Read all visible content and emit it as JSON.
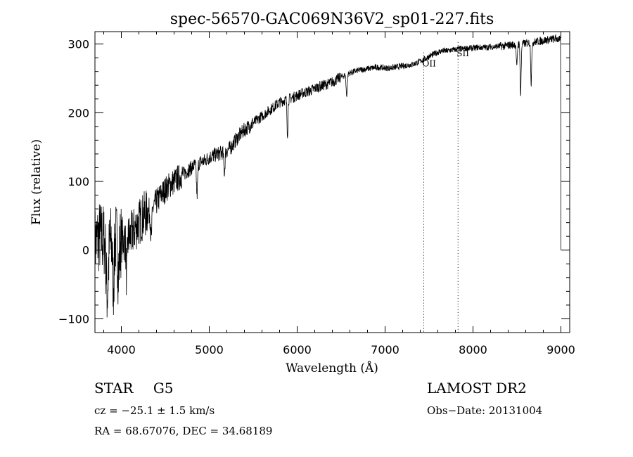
{
  "chart_data": {
    "type": "line",
    "title": "spec-56570-GAC069N36V2_sp01-227.fits",
    "xlabel": "Wavelength (Å)",
    "ylabel": "Flux (relative)",
    "xlim": [
      3700,
      9100
    ],
    "ylim": [
      -120,
      318
    ],
    "xticks": [
      4000,
      5000,
      6000,
      7000,
      8000,
      9000
    ],
    "xtick_labels": [
      "4000",
      "5000",
      "6000",
      "7000",
      "8000",
      "9000"
    ],
    "yticks": [
      -100,
      0,
      100,
      200,
      300
    ],
    "ytick_labels": [
      "−100",
      "0",
      "100",
      "200",
      "300"
    ],
    "grid": false,
    "legend": "none",
    "line_color": "#000000",
    "series": [
      {
        "x": [
          3700,
          3750,
          3800,
          3850,
          3900,
          3950,
          4000,
          4050,
          4100,
          4150,
          4200,
          4250,
          4300,
          4350,
          4400,
          4450,
          4500,
          4550,
          4600,
          4650,
          4700,
          4750,
          4800,
          4850,
          4900,
          4950,
          5000,
          5050,
          5100,
          5150,
          5200,
          5250,
          5300,
          5350,
          5400,
          5450,
          5500,
          5550,
          5600,
          5650,
          5700,
          5750,
          5800,
          5850,
          5900,
          5950,
          6000,
          6050,
          6100,
          6150,
          6200,
          6250,
          6300,
          6350,
          6400,
          6450,
          6500,
          6550,
          6600,
          6650,
          6700,
          6750,
          6800,
          6850,
          6900,
          6950,
          7000,
          7050,
          7100,
          7150,
          7200,
          7250,
          7300,
          7350,
          7400,
          7450,
          7500,
          7550,
          7600,
          7650,
          7700,
          7750,
          7800,
          7850,
          7900,
          7950,
          8000,
          8050,
          8100,
          8150,
          8200,
          8250,
          8300,
          8350,
          8400,
          8450,
          8500,
          8550,
          8600,
          8650,
          8700,
          8750,
          8800,
          8850,
          8900,
          8950,
          9000
        ],
        "y": [
          10,
          20,
          15,
          18,
          10,
          20,
          15,
          18,
          20,
          30,
          40,
          50,
          55,
          60,
          70,
          80,
          88,
          95,
          100,
          105,
          110,
          115,
          120,
          125,
          128,
          130,
          135,
          138,
          140,
          142,
          145,
          150,
          160,
          168,
          175,
          180,
          185,
          190,
          195,
          200,
          205,
          210,
          215,
          218,
          220,
          222,
          225,
          228,
          230,
          232,
          235,
          238,
          240,
          242,
          245,
          248,
          252,
          255,
          258,
          260,
          262,
          263,
          264,
          265,
          266,
          266,
          265,
          265,
          266,
          267,
          268,
          269,
          270,
          272,
          275,
          278,
          282,
          285,
          288,
          290,
          290,
          291,
          292,
          293,
          293,
          294,
          294,
          295,
          295,
          295,
          296,
          296,
          297,
          297,
          298,
          299,
          300,
          300,
          301,
          302,
          303,
          304,
          305,
          306,
          307,
          308,
          305
        ]
      }
    ],
    "features": [
      {
        "type": "absorption",
        "x": 3840,
        "depth": 80,
        "width": 18
      },
      {
        "type": "absorption",
        "x": 3910,
        "depth": 60,
        "width": 12
      },
      {
        "type": "absorption",
        "x": 3968,
        "depth": 50,
        "width": 14
      },
      {
        "type": "absorption",
        "x": 4060,
        "depth": 55,
        "width": 10
      },
      {
        "type": "absorption",
        "x": 4340,
        "depth": 45,
        "width": 10
      },
      {
        "type": "absorption",
        "x": 4861,
        "depth": 45,
        "width": 10
      },
      {
        "type": "absorption",
        "x": 5172,
        "depth": 30,
        "width": 10
      },
      {
        "type": "absorption",
        "x": 5890,
        "depth": 50,
        "width": 8
      },
      {
        "type": "absorption",
        "x": 6563,
        "depth": 30,
        "width": 10
      },
      {
        "type": "absorption",
        "x": 8498,
        "depth": 35,
        "width": 8
      },
      {
        "type": "absorption",
        "x": 8542,
        "depth": 75,
        "width": 8
      },
      {
        "type": "absorption",
        "x": 8662,
        "depth": 60,
        "width": 8
      }
    ],
    "vlines": [
      {
        "x": 7440,
        "label": "OII"
      },
      {
        "x": 7830,
        "label": "SII"
      }
    ]
  },
  "info": {
    "object_class": "STAR",
    "subclass": "G5",
    "survey": "LAMOST DR2",
    "cz": "cz = −25.1 ± 1.5 km/s",
    "obs_date": "Obs−Date: 20131004",
    "radec": "RA =  68.67076, DEC =  34.68189"
  }
}
